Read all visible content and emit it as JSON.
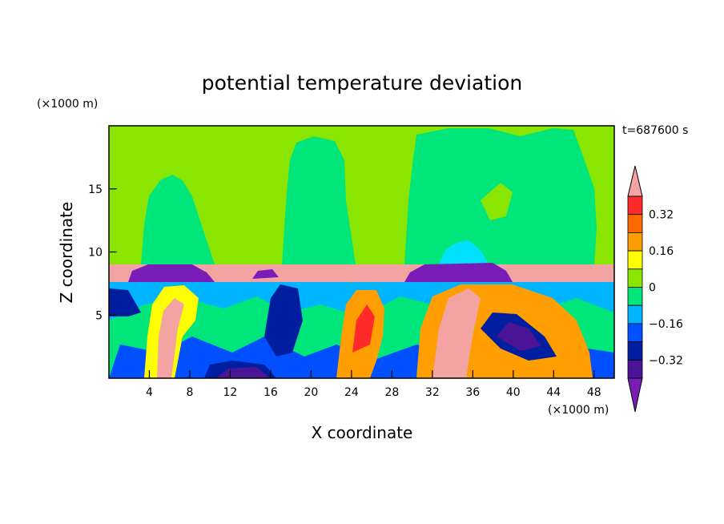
{
  "chart_data": {
    "type": "heatmap",
    "title": "potential temperature deviation",
    "xlabel": "X coordinate",
    "ylabel": "Z coordinate",
    "x_unit": "(×1000 m)",
    "z_unit": "(×1000 m)",
    "time_label": "t=687600 s",
    "xlim": [
      0,
      50
    ],
    "ylim": [
      0,
      20
    ],
    "x_ticks": [
      4,
      8,
      12,
      16,
      20,
      24,
      28,
      32,
      36,
      40,
      44,
      48
    ],
    "y_ticks": [
      5,
      10,
      15
    ],
    "colorbar": {
      "levels": [
        -0.4,
        -0.32,
        -0.24,
        -0.16,
        -0.08,
        0,
        0.08,
        0.16,
        0.24,
        0.32,
        0.4
      ],
      "labels": [
        "0.32",
        "0.16",
        "0",
        "−0.16",
        "−0.32"
      ],
      "colors_top_to_bottom": [
        "#f4a3a3",
        "#ff2a2a",
        "#ff6a00",
        "#ff9e00",
        "#ffff00",
        "#8ae600",
        "#00e67a",
        "#00b4ff",
        "#0050ff",
        "#001fa0",
        "#4b1496",
        "#7a1cb8"
      ]
    },
    "field_colors": {
      "upper": "#8ae600",
      "plume": "#00e67a",
      "inversion": "#f4a3a3",
      "cold": "#4b1496"
    }
  }
}
